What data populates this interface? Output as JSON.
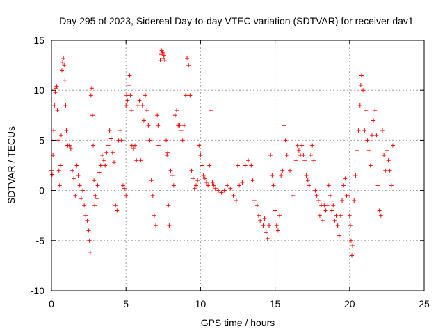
{
  "chart_data": {
    "type": "scatter",
    "title": "Day 295 of 2023, Sidereal Day-to-day VTEC variation (SDTVAR) for receiver dav1",
    "xlabel": "GPS time / hours",
    "ylabel": "SDTVAR / TECUs",
    "xlim": [
      0,
      25
    ],
    "ylim": [
      -10,
      15
    ],
    "xticks": [
      0,
      5,
      10,
      15,
      20,
      25
    ],
    "yticks": [
      -10,
      -5,
      0,
      5,
      10,
      15
    ],
    "grid": true,
    "marker": "+",
    "series": [
      {
        "name": "SDTVAR",
        "color": "#ff0000",
        "points": [
          [
            0.0,
            2.0
          ],
          [
            0.05,
            1.6
          ],
          [
            0.1,
            3.5
          ],
          [
            0.15,
            6.0
          ],
          [
            0.2,
            8.5
          ],
          [
            0.25,
            9.8
          ],
          [
            0.3,
            10.2
          ],
          [
            0.35,
            10.4
          ],
          [
            0.4,
            8.0
          ],
          [
            0.45,
            5.0
          ],
          [
            0.5,
            2.0
          ],
          [
            0.55,
            0.5
          ],
          [
            0.6,
            2.5
          ],
          [
            0.65,
            5.5
          ],
          [
            0.7,
            12.0
          ],
          [
            0.75,
            12.8
          ],
          [
            0.8,
            13.2
          ],
          [
            0.85,
            12.5
          ],
          [
            0.9,
            11.0
          ],
          [
            0.95,
            8.5
          ],
          [
            1.0,
            6.0
          ],
          [
            1.05,
            4.5
          ],
          [
            1.1,
            4.5
          ],
          [
            1.2,
            4.5
          ],
          [
            1.3,
            4.2
          ],
          [
            1.4,
            2.0
          ],
          [
            1.5,
            1.2
          ],
          [
            1.6,
            -0.5
          ],
          [
            1.7,
            2.5
          ],
          [
            1.8,
            1.5
          ],
          [
            1.9,
            0.5
          ],
          [
            2.0,
            -0.8
          ],
          [
            2.1,
            0.0
          ],
          [
            2.2,
            -1.5
          ],
          [
            2.3,
            -2.5
          ],
          [
            2.4,
            -3.0
          ],
          [
            2.5,
            -4.0
          ],
          [
            2.55,
            -5.0
          ],
          [
            2.6,
            -6.2
          ],
          [
            2.65,
            9.5
          ],
          [
            2.7,
            10.2
          ],
          [
            2.75,
            7.5
          ],
          [
            2.8,
            4.5
          ],
          [
            2.85,
            1.0
          ],
          [
            2.9,
            -1.5
          ],
          [
            2.95,
            -0.5
          ],
          [
            3.05,
            -0.8
          ],
          [
            3.1,
            0.5
          ],
          [
            3.2,
            1.8
          ],
          [
            3.3,
            2.5
          ],
          [
            3.4,
            3.5
          ],
          [
            3.5,
            3.0
          ],
          [
            3.6,
            2.5
          ],
          [
            3.7,
            3.8
          ],
          [
            3.8,
            4.5
          ],
          [
            3.9,
            6.0
          ],
          [
            4.0,
            5.2
          ],
          [
            4.1,
            3.8
          ],
          [
            4.2,
            2.8
          ],
          [
            4.3,
            -1.5
          ],
          [
            4.4,
            -2.0
          ],
          [
            4.5,
            5.0
          ],
          [
            4.6,
            6.0
          ],
          [
            4.7,
            5.0
          ],
          [
            4.8,
            0.5
          ],
          [
            4.9,
            0.2
          ],
          [
            5.0,
            -0.5
          ],
          [
            5.0,
            8.5
          ],
          [
            5.05,
            9.5
          ],
          [
            5.1,
            9.0
          ],
          [
            5.2,
            10.5
          ],
          [
            5.25,
            11.5
          ],
          [
            5.3,
            9.5
          ],
          [
            5.35,
            8.0
          ],
          [
            5.4,
            4.5
          ],
          [
            5.5,
            4.2
          ],
          [
            5.6,
            4.5
          ],
          [
            5.7,
            3.0
          ],
          [
            5.8,
            8.5
          ],
          [
            5.9,
            9.0
          ],
          [
            6.0,
            3.0
          ],
          [
            6.1,
            8.5
          ],
          [
            6.2,
            7.0
          ],
          [
            6.3,
            9.5
          ],
          [
            6.4,
            8.0
          ],
          [
            6.5,
            6.5
          ],
          [
            6.6,
            5.0
          ],
          [
            6.7,
            1.0
          ],
          [
            6.8,
            -0.5
          ],
          [
            6.9,
            -2.5
          ],
          [
            7.0,
            -3.5
          ],
          [
            7.1,
            7.5
          ],
          [
            7.15,
            6.5
          ],
          [
            7.2,
            4.5
          ],
          [
            7.3,
            13.0
          ],
          [
            7.35,
            13.6
          ],
          [
            7.4,
            14.0
          ],
          [
            7.45,
            13.8
          ],
          [
            7.5,
            13.2
          ],
          [
            7.55,
            13.5
          ],
          [
            7.6,
            13.0
          ],
          [
            7.7,
            5.0
          ],
          [
            7.75,
            3.5
          ],
          [
            7.8,
            3.8
          ],
          [
            7.85,
            -1.5
          ],
          [
            7.9,
            -3.5
          ],
          [
            8.0,
            2.0
          ],
          [
            8.1,
            1.5
          ],
          [
            8.2,
            0.5
          ],
          [
            8.3,
            7.5
          ],
          [
            8.4,
            8.0
          ],
          [
            8.5,
            6.5
          ],
          [
            8.6,
            6.5
          ],
          [
            8.7,
            6.0
          ],
          [
            8.8,
            5.0
          ],
          [
            8.9,
            6.5
          ],
          [
            9.0,
            9.5
          ],
          [
            9.1,
            13.2
          ],
          [
            9.2,
            12.5
          ],
          [
            9.3,
            9.5
          ],
          [
            9.4,
            2.0
          ],
          [
            9.5,
            1.2
          ],
          [
            9.6,
            0.2
          ],
          [
            9.7,
            0.5
          ],
          [
            9.8,
            1.0
          ],
          [
            9.9,
            4.5
          ],
          [
            10.0,
            3.5
          ],
          [
            10.1,
            2.5
          ],
          [
            10.2,
            1.5
          ],
          [
            10.3,
            1.2
          ],
          [
            10.4,
            0.8
          ],
          [
            10.5,
            0.5
          ],
          [
            10.6,
            2.5
          ],
          [
            10.7,
            8.0
          ],
          [
            10.8,
            0.8
          ],
          [
            10.9,
            0.5
          ],
          [
            11.0,
            0.2
          ],
          [
            11.2,
            0.0
          ],
          [
            11.4,
            -0.2
          ],
          [
            11.6,
            0.0
          ],
          [
            11.8,
            0.5
          ],
          [
            12.0,
            0.2
          ],
          [
            12.2,
            -0.5
          ],
          [
            12.4,
            -1.0
          ],
          [
            12.5,
            2.5
          ],
          [
            12.6,
            0.5
          ],
          [
            12.8,
            0.8
          ],
          [
            13.0,
            2.5
          ],
          [
            13.2,
            3.0
          ],
          [
            13.4,
            2.5
          ],
          [
            13.5,
            1.0
          ],
          [
            13.6,
            -1.0
          ],
          [
            13.8,
            -1.5
          ],
          [
            13.9,
            -2.5
          ],
          [
            14.0,
            -3.0
          ],
          [
            14.2,
            -3.5
          ],
          [
            14.3,
            -2.8
          ],
          [
            14.4,
            -4.2
          ],
          [
            14.5,
            -4.8
          ],
          [
            14.6,
            -3.5
          ],
          [
            14.7,
            3.5
          ],
          [
            14.8,
            1.5
          ],
          [
            14.9,
            0.5
          ],
          [
            15.0,
            -2.0
          ],
          [
            15.1,
            -3.5
          ],
          [
            15.2,
            -4.0
          ],
          [
            15.3,
            -2.5
          ],
          [
            15.4,
            1.5
          ],
          [
            15.5,
            2.0
          ],
          [
            15.6,
            6.5
          ],
          [
            15.7,
            5.0
          ],
          [
            15.8,
            3.5
          ],
          [
            16.0,
            2.0
          ],
          [
            16.2,
            -0.5
          ],
          [
            16.4,
            3.0
          ],
          [
            16.5,
            4.5
          ],
          [
            16.6,
            4.0
          ],
          [
            16.7,
            3.5
          ],
          [
            16.8,
            4.5
          ],
          [
            16.9,
            3.5
          ],
          [
            17.0,
            3.0
          ],
          [
            17.1,
            1.5
          ],
          [
            17.2,
            1.0
          ],
          [
            17.3,
            0.5
          ],
          [
            17.4,
            3.5
          ],
          [
            17.5,
            4.5
          ],
          [
            17.6,
            3.0
          ],
          [
            17.7,
            0.0
          ],
          [
            17.8,
            -0.5
          ],
          [
            17.9,
            -1.0
          ],
          [
            18.0,
            -2.5
          ],
          [
            18.1,
            -1.5
          ],
          [
            18.2,
            -3.0
          ],
          [
            18.3,
            -1.5
          ],
          [
            18.4,
            -2.0
          ],
          [
            18.5,
            -1.5
          ],
          [
            18.6,
            0.5
          ],
          [
            18.7,
            -0.5
          ],
          [
            18.8,
            -2.0
          ],
          [
            18.9,
            -1.5
          ],
          [
            19.0,
            -3.0
          ],
          [
            19.1,
            -2.5
          ],
          [
            19.2,
            -3.5
          ],
          [
            19.3,
            -4.5
          ],
          [
            19.4,
            -2.5
          ],
          [
            19.5,
            -1.0
          ],
          [
            19.6,
            0.5
          ],
          [
            19.7,
            1.2
          ],
          [
            19.8,
            -0.5
          ],
          [
            19.9,
            -0.5
          ],
          [
            20.0,
            -2.5
          ],
          [
            20.05,
            -3.5
          ],
          [
            20.1,
            -5.0
          ],
          [
            20.15,
            -6.5
          ],
          [
            20.2,
            -5.5
          ],
          [
            20.3,
            -1.0
          ],
          [
            20.4,
            1.5
          ],
          [
            20.5,
            4.0
          ],
          [
            20.6,
            6.0
          ],
          [
            20.7,
            8.5
          ],
          [
            20.75,
            10.5
          ],
          [
            20.8,
            11.5
          ],
          [
            20.9,
            10.0
          ],
          [
            21.0,
            6.0
          ],
          [
            21.1,
            8.0
          ],
          [
            21.2,
            5.0
          ],
          [
            21.3,
            4.0
          ],
          [
            21.4,
            2.5
          ],
          [
            21.5,
            5.5
          ],
          [
            21.6,
            7.0
          ],
          [
            21.7,
            8.0
          ],
          [
            21.8,
            5.5
          ],
          [
            21.9,
            0.5
          ],
          [
            22.0,
            -2.0
          ],
          [
            22.1,
            -2.5
          ],
          [
            22.2,
            6.0
          ],
          [
            22.3,
            3.5
          ],
          [
            22.4,
            2.0
          ],
          [
            22.5,
            4.0
          ],
          [
            22.6,
            3.0
          ],
          [
            22.7,
            2.0
          ],
          [
            22.8,
            0.5
          ],
          [
            22.9,
            4.5
          ]
        ]
      }
    ]
  }
}
